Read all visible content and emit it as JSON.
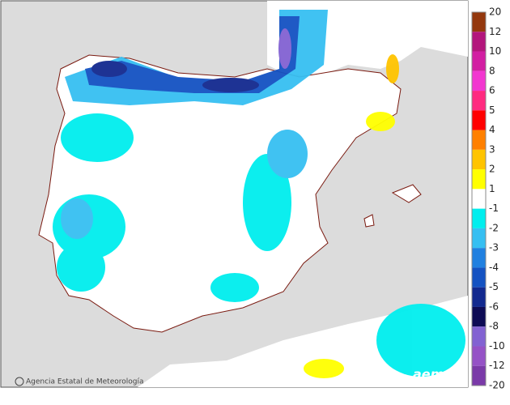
{
  "legend": {
    "labels": [
      "20",
      "12",
      "10",
      "8",
      "6",
      "5",
      "4",
      "3",
      "2",
      "1",
      "-1",
      "-2",
      "-3",
      "-4",
      "-5",
      "-6",
      "-8",
      "-10",
      "-12",
      "-20"
    ],
    "colors": [
      "#94380e",
      "#b3167c",
      "#d21ea2",
      "#f236d0",
      "#ff2a80",
      "#ff0000",
      "#ff8000",
      "#ffc400",
      "#ffff00",
      "#ffffff",
      "#00eeee",
      "#36bff2",
      "#2080e0",
      "#1452c2",
      "#12298f",
      "#0d0b55",
      "#8262d2",
      "#9552c6",
      "#7a3aa8"
    ]
  },
  "credit": "Agencia Estatal de Meteorología",
  "logo": "aemet"
}
